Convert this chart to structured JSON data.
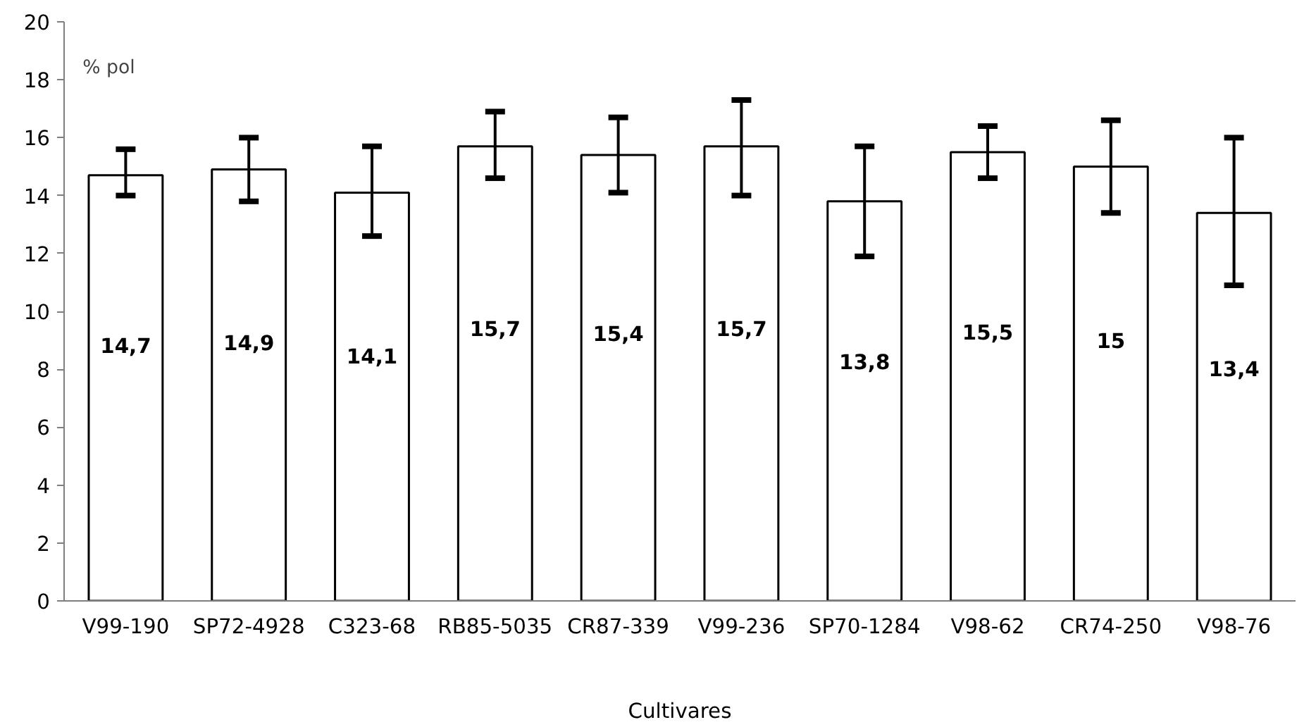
{
  "chart_data": {
    "type": "bar",
    "ylabel": "% pol",
    "xlabel": "Cultivares",
    "categories": [
      "V99-190",
      "SP72-4928",
      "C323-68",
      "RB85-5035",
      "CR87-339",
      "V99-236",
      "SP70-1284",
      "V98-62",
      "CR74-250",
      "V98-76"
    ],
    "values": [
      14.7,
      14.9,
      14.1,
      15.7,
      15.4,
      15.7,
      13.8,
      15.5,
      15,
      13.4
    ],
    "value_labels": [
      "14,7",
      "14,9",
      "14,1",
      "15,7",
      "15,4",
      "15,7",
      "13,8",
      "15,5",
      "15",
      "13,4"
    ],
    "errors": [
      [
        14.0,
        15.6
      ],
      [
        13.8,
        16.0
      ],
      [
        12.6,
        15.7
      ],
      [
        14.6,
        16.9
      ],
      [
        14.1,
        16.7
      ],
      [
        14.0,
        17.3
      ],
      [
        11.9,
        15.7
      ],
      [
        14.6,
        16.4
      ],
      [
        13.4,
        16.6
      ],
      [
        10.9,
        16.0
      ]
    ],
    "color": "#ffffff",
    "ylim": [
      0,
      20
    ],
    "yticks": [
      0,
      2,
      4,
      6,
      8,
      10,
      12,
      14,
      16,
      18,
      20
    ],
    "grid": false
  }
}
